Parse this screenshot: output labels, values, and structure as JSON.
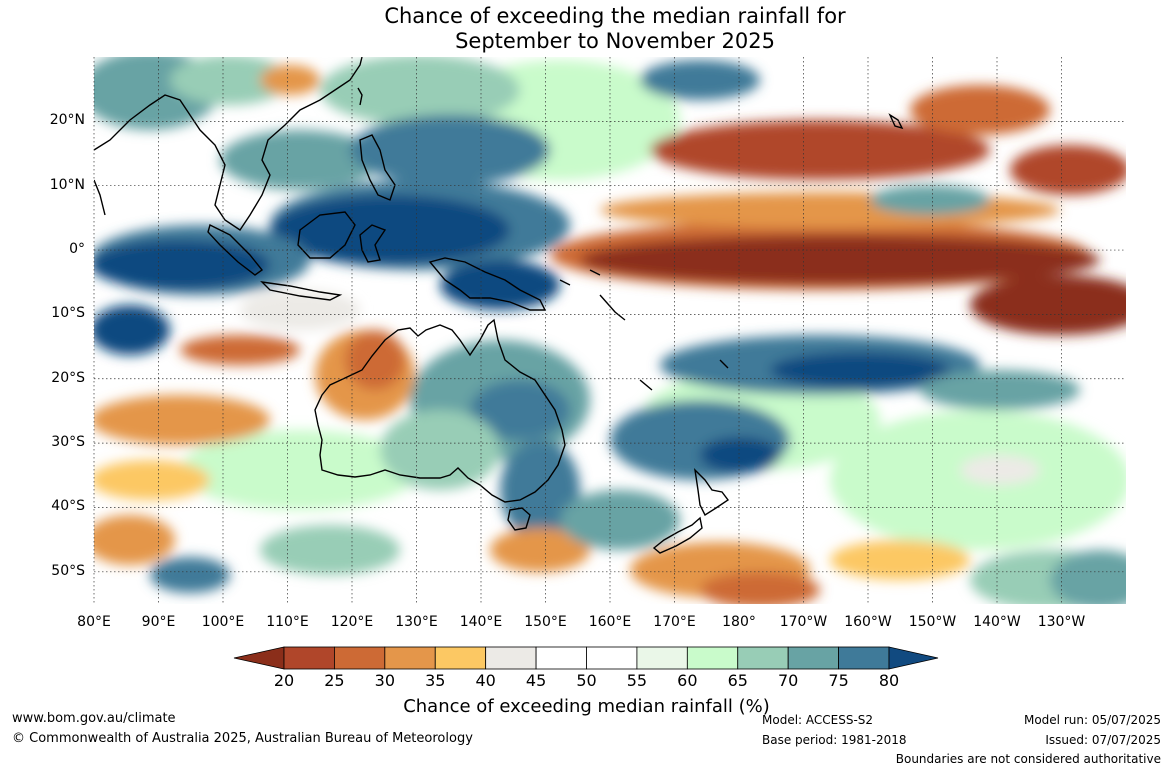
{
  "title": {
    "line1": "Chance of exceeding the median rainfall for",
    "line2": "September to November 2025"
  },
  "map": {
    "latitude_labels": [
      "20°N",
      "10°N",
      "0°",
      "10°S",
      "20°S",
      "30°S",
      "40°S",
      "50°S"
    ],
    "latitude_values": [
      20,
      10,
      0,
      -10,
      -20,
      -30,
      -40,
      -50
    ],
    "longitude_labels": [
      "80°E",
      "90°E",
      "100°E",
      "110°E",
      "120°E",
      "130°E",
      "140°E",
      "150°E",
      "160°E",
      "170°E",
      "180°",
      "170°W",
      "160°W",
      "150°W",
      "140°W",
      "130°W"
    ],
    "longitude_values": [
      80,
      90,
      100,
      110,
      120,
      130,
      140,
      150,
      160,
      170,
      180,
      190,
      200,
      210,
      220,
      230
    ],
    "lat_range": [
      -55,
      30
    ],
    "lon_range": [
      80,
      240
    ],
    "gridlines": "dotted"
  },
  "colorbar": {
    "ticks": [
      "20",
      "25",
      "30",
      "35",
      "40",
      "45",
      "50",
      "55",
      "60",
      "65",
      "70",
      "75",
      "80"
    ],
    "colors": [
      "#8b2e1a",
      "#b0462a",
      "#cd6a35",
      "#e4964a",
      "#fcc863",
      "#eceae6",
      "#ffffff",
      "#ffffff",
      "#eaf7e8",
      "#c9fbcb",
      "#98cdb6",
      "#68a3a4",
      "#3f7a99",
      "#114a80"
    ],
    "label": "Chance of exceeding median rainfall (%)"
  },
  "footer": {
    "website": "www.bom.gov.au/climate",
    "copyright": "© Commonwealth of Australia 2025, Australian Bureau of Meteorology",
    "model": "Model: ACCESS-S2",
    "base_period": "Base period: 1981-2018",
    "model_run": "Model run: 05/07/2025",
    "issued": "Issued: 07/07/2025",
    "disclaimer": "Boundaries are not considered authoritative"
  }
}
